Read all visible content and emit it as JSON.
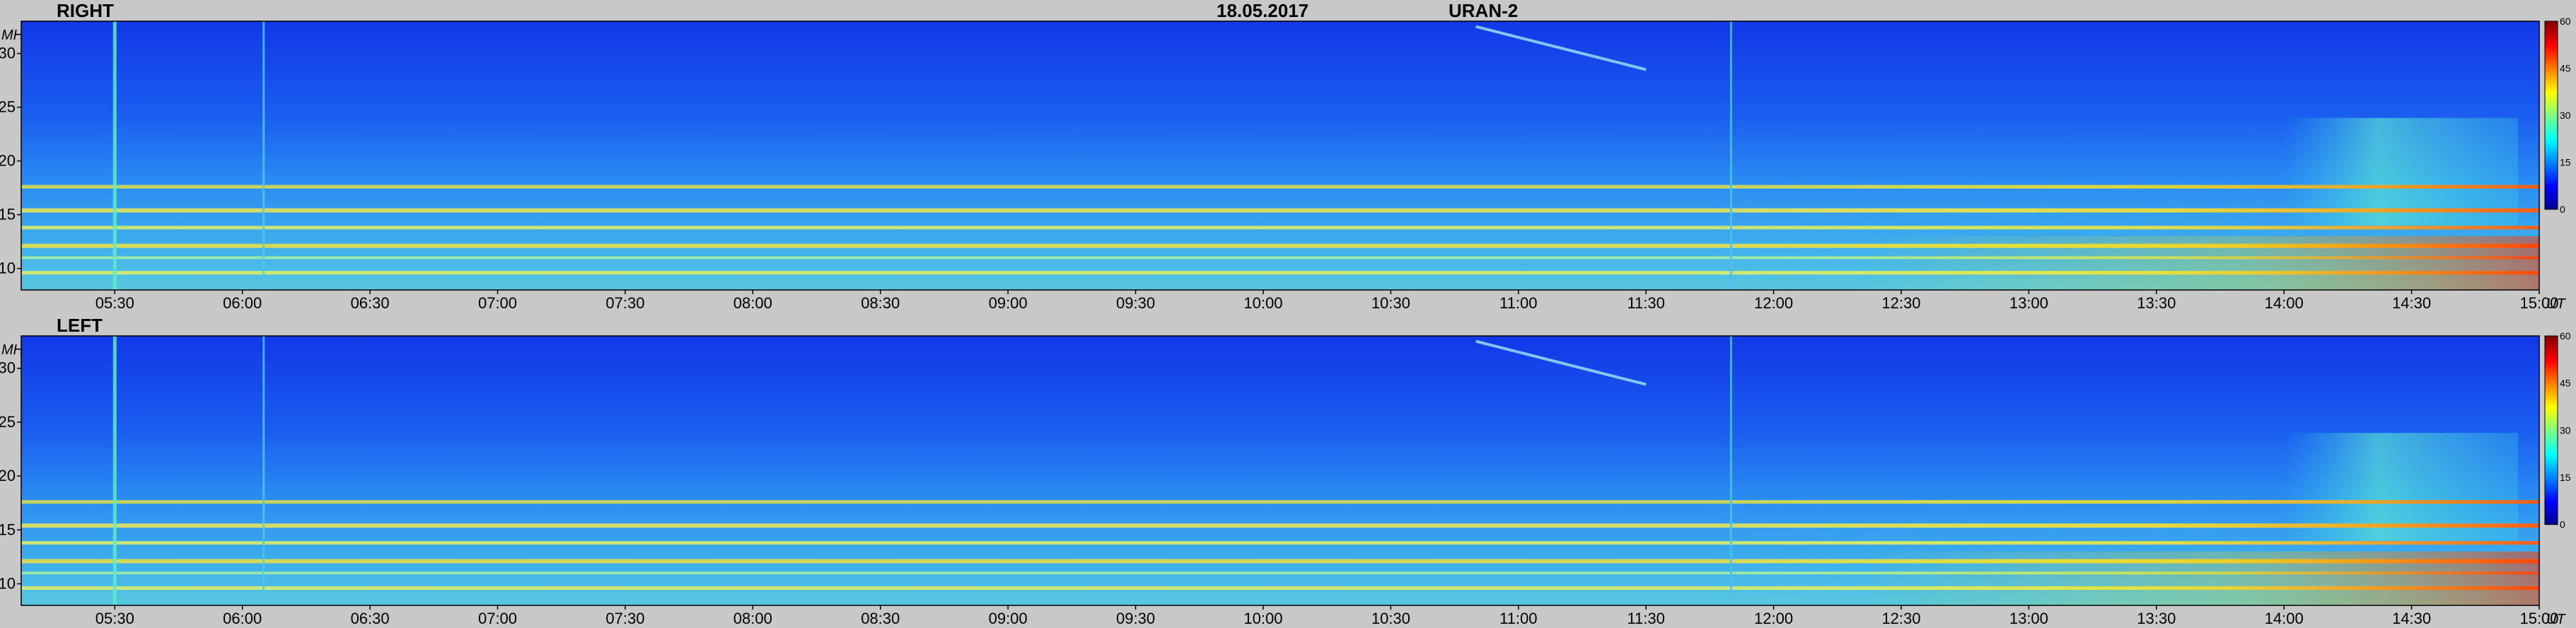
{
  "header": {
    "date": "18.05.2017",
    "instrument": "URAN-2"
  },
  "chart_data": {
    "type": "heatmap",
    "x_unit": "UT",
    "y_unit": "MHz",
    "x_ticks": [
      "05:30",
      "06:00",
      "06:30",
      "07:00",
      "07:30",
      "08:00",
      "08:30",
      "09:00",
      "09:30",
      "10:00",
      "10:30",
      "11:00",
      "11:30",
      "12:00",
      "12:30",
      "13:00",
      "13:30",
      "14:00",
      "14:30",
      "15:00"
    ],
    "x_range": [
      "05:08",
      "15:00"
    ],
    "y_ticks": [
      10,
      15,
      20,
      25,
      30
    ],
    "y_range": [
      8,
      33
    ],
    "colorbar": {
      "ticks": [
        0,
        15,
        30,
        45,
        60
      ],
      "range": [
        0,
        60
      ]
    },
    "panels": [
      {
        "label": "RIGHT"
      },
      {
        "label": "LEFT"
      }
    ]
  }
}
